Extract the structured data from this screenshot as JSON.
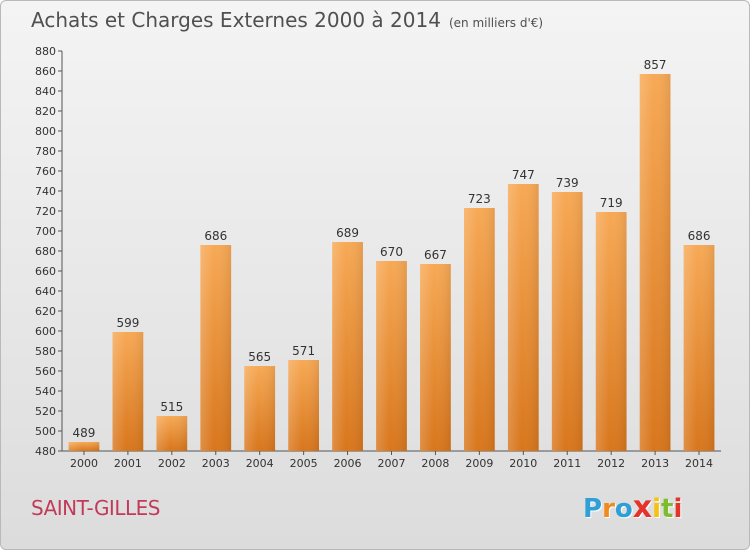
{
  "chart_data": {
    "type": "bar",
    "title": "Achats et Charges Externes 2000 à 2014",
    "subtitle": "(en milliers d'€)",
    "categories": [
      "2000",
      "2001",
      "2002",
      "2003",
      "2004",
      "2005",
      "2006",
      "2007",
      "2008",
      "2009",
      "2010",
      "2011",
      "2012",
      "2013",
      "2014"
    ],
    "values": [
      489,
      599,
      515,
      686,
      565,
      571,
      689,
      670,
      667,
      723,
      747,
      739,
      719,
      857,
      686
    ],
    "ylim": [
      480,
      880
    ],
    "yticks": [
      480,
      500,
      520,
      540,
      560,
      580,
      600,
      620,
      640,
      660,
      680,
      700,
      720,
      740,
      760,
      780,
      800,
      820,
      840,
      860,
      880
    ],
    "grid": false,
    "bar_color": "#f29a3a",
    "xlabel": "",
    "ylabel": ""
  },
  "footer": {
    "place": "SAINT-GILLES",
    "logo_letters": [
      "P",
      "r",
      "o",
      "x",
      "i",
      "t",
      "i"
    ],
    "logo_colors": [
      "#2f9fd8",
      "#f08a1c",
      "#2f9fd8",
      "#e6332a",
      "#f6c20f",
      "#7dbb2f",
      "#e6332a"
    ]
  }
}
